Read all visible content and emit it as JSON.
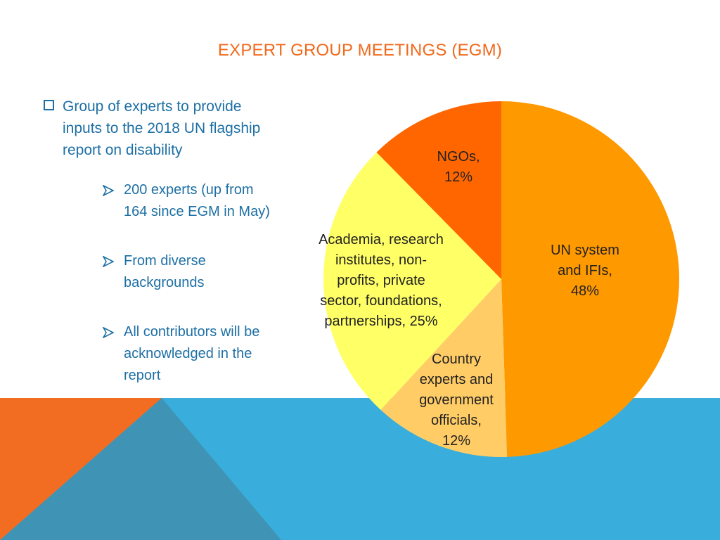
{
  "title": "EXPERT GROUP MEETINGS (EGM)",
  "main_bullet": {
    "icon": "checkbox-icon",
    "lines": [
      "Group of experts to provide",
      "inputs to the 2018 UN flagship",
      "report on disability"
    ]
  },
  "sub_bullets": [
    {
      "icon": "arrow-bullet-icon",
      "lines": [
        "200 experts (up from",
        "164 since EGM in May)"
      ]
    },
    {
      "icon": "arrow-bullet-icon",
      "lines": [
        "From diverse",
        "backgrounds"
      ]
    },
    {
      "icon": "arrow-bullet-icon",
      "lines": [
        "All contributors will be",
        "acknowledged in the",
        "report"
      ]
    }
  ],
  "colors": {
    "title": "#f06a1c",
    "text": "#1d6fa4",
    "band_blue": "#39aedc",
    "band_orange": "#f26c21",
    "band_shadow": "#3f94b6"
  },
  "chart_data": {
    "type": "pie",
    "start_angle_deg": 0,
    "direction": "clockwise",
    "slices": [
      {
        "name": "UN system and IFIs",
        "value": 48,
        "color": "#ff9900",
        "label_lines": [
          "UN system",
          "and IFIs,",
          "48%"
        ]
      },
      {
        "name": "Country experts and government officials",
        "value": 12,
        "color": "#ffcc66",
        "label_lines": [
          "Country",
          "experts and",
          "government",
          "officials,",
          "12%"
        ]
      },
      {
        "name": "Academia, research institutes, non-profits, private sector, foundations, partnerships",
        "value": 25,
        "color": "#ffff66",
        "label_lines": [
          "Academia, research",
          "institutes, non-",
          "profits, private",
          "sector, foundations,",
          "partnerships, 25%"
        ]
      },
      {
        "name": "NGOs",
        "value": 12,
        "color": "#ff6600",
        "label_lines": [
          "NGOs,",
          "12%"
        ]
      }
    ]
  }
}
